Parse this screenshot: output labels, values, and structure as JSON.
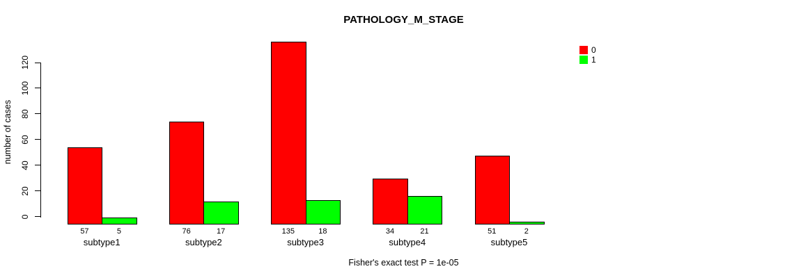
{
  "chart_data": {
    "type": "bar",
    "grouped": true,
    "title": "PATHOLOGY_M_STAGE",
    "categories": [
      "subtype1",
      "subtype2",
      "subtype3",
      "subtype4",
      "subtype5"
    ],
    "series": [
      {
        "name": "0",
        "color": "#ff0000",
        "values": [
          57,
          76,
          135,
          34,
          51
        ]
      },
      {
        "name": "1",
        "color": "#00ff00",
        "values": [
          5,
          17,
          18,
          21,
          2
        ]
      }
    ],
    "bar_value_labels_shown": true,
    "xlabel": "",
    "ylabel": "number of cases",
    "yticks": [
      0,
      20,
      40,
      60,
      80,
      100,
      120
    ],
    "ylim": [
      0,
      135
    ],
    "grid": false,
    "legend_position": "top-right",
    "annotation": "Fisher's exact test P = 1e-05",
    "colors": {
      "bar_border": "#000000",
      "axis": "#000000",
      "text": "#000000",
      "background": "#ffffff"
    }
  }
}
